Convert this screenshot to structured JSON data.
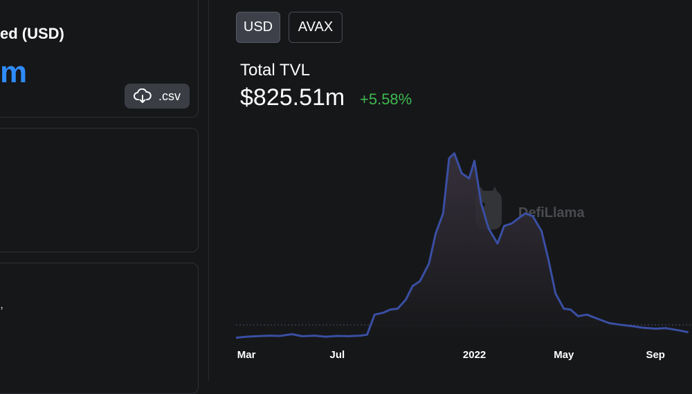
{
  "sidebar": {
    "summary_label": "ed (USD)",
    "summary_value": "m",
    "csv_label": ".csv",
    "partial_glyph": ","
  },
  "currency_toggle": {
    "options": [
      {
        "label": "USD",
        "selected": true
      },
      {
        "label": "AVAX",
        "selected": false
      }
    ]
  },
  "tvl": {
    "label": "Total TVL",
    "value": "$825.51m",
    "change": "+5.58%",
    "change_color": "#3fb950"
  },
  "watermark": {
    "text": "DefiLlama"
  },
  "colors": {
    "line": "#3a4fa3",
    "background": "#161719",
    "accent_blue": "#2f8bff"
  },
  "chart_data": {
    "type": "area",
    "title": "Total TVL",
    "xlabel": "",
    "ylabel": "",
    "x_ticks": [
      "Mar",
      "Jul",
      "2022",
      "May",
      "Sep"
    ],
    "x": [
      "2021-02-15",
      "2021-03-01",
      "2021-03-15",
      "2021-04-01",
      "2021-04-15",
      "2021-05-01",
      "2021-05-15",
      "2021-06-01",
      "2021-06-15",
      "2021-07-01",
      "2021-07-15",
      "2021-08-01",
      "2021-08-10",
      "2021-08-20",
      "2021-09-01",
      "2021-09-10",
      "2021-09-20",
      "2021-10-01",
      "2021-10-10",
      "2021-10-20",
      "2021-11-01",
      "2021-11-10",
      "2021-11-20",
      "2021-11-28",
      "2021-12-05",
      "2021-12-15",
      "2021-12-25",
      "2022-01-01",
      "2022-01-10",
      "2022-01-20",
      "2022-02-01",
      "2022-02-10",
      "2022-02-20",
      "2022-03-01",
      "2022-03-10",
      "2022-03-20",
      "2022-04-01",
      "2022-04-10",
      "2022-04-20",
      "2022-05-01",
      "2022-05-10",
      "2022-05-20",
      "2022-06-01",
      "2022-06-15",
      "2022-07-01",
      "2022-07-15",
      "2022-08-01",
      "2022-08-15",
      "2022-09-01",
      "2022-09-15",
      "2022-10-01",
      "2022-10-15"
    ],
    "series": [
      {
        "values": [
          20,
          40,
          50,
          60,
          55,
          90,
          50,
          60,
          40,
          55,
          50,
          60,
          80,
          480,
          520,
          580,
          600,
          780,
          1050,
          1150,
          1500,
          2100,
          2500,
          3600,
          3700,
          3300,
          3200,
          3550,
          2700,
          2200,
          1900,
          2250,
          2300,
          2400,
          2500,
          2450,
          2150,
          1600,
          900,
          600,
          580,
          450,
          480,
          400,
          310,
          280,
          250,
          220,
          200,
          210,
          170,
          130
        ]
      }
    ],
    "ylim": [
      0,
      4000
    ],
    "grid": false
  }
}
